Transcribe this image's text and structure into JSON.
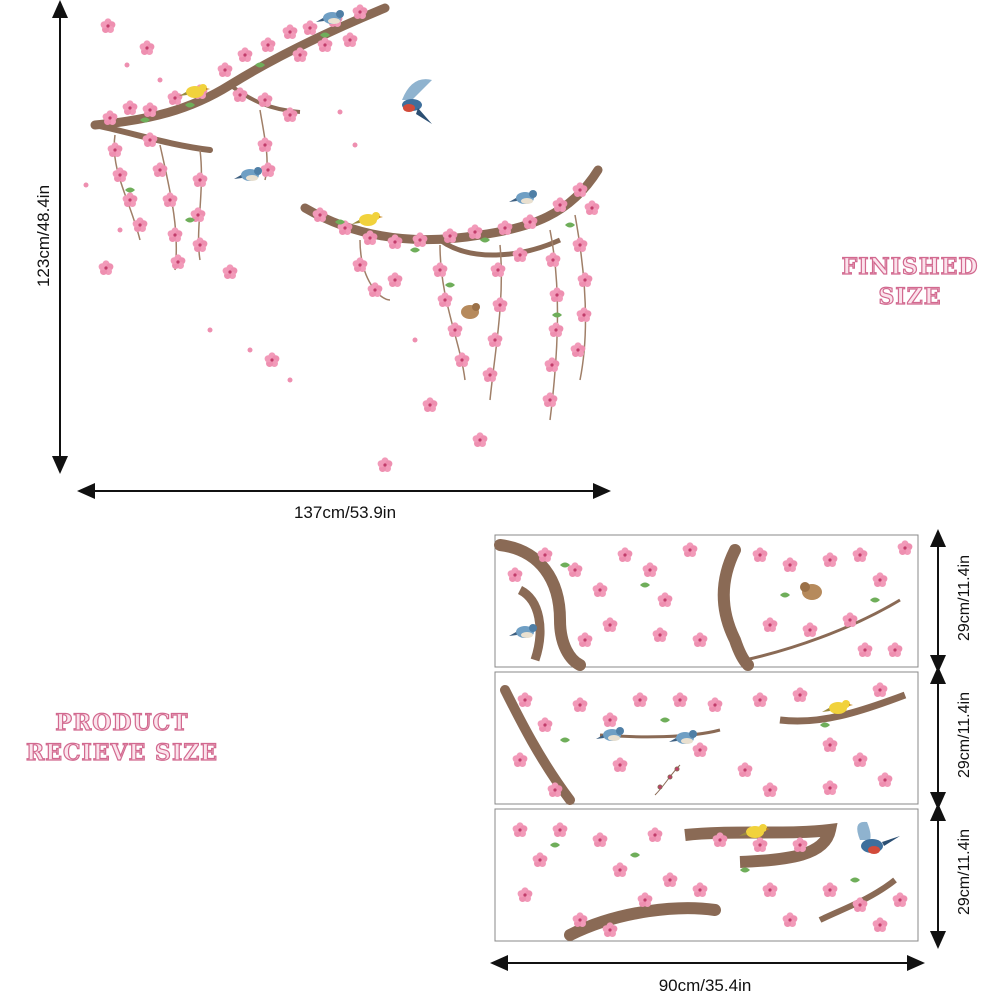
{
  "labels": {
    "finished_size": "FINISHED SIZE",
    "product_size": "PRODUCT RECIEVE SIZE"
  },
  "dimensions": {
    "finished_height": "123cm/48.4in",
    "finished_width": "137cm/53.9in",
    "panel1_height": "29cm/11.4in",
    "panel2_height": "29cm/11.4in",
    "panel3_height": "29cm/11.4in",
    "panels_width": "90cm/35.4in"
  },
  "colors": {
    "blossom": "#ee8fb0",
    "blossom_dark": "#d9668f",
    "branch": "#8a6a55",
    "leaf": "#6fae5a",
    "title_stroke": "#d2698f"
  }
}
